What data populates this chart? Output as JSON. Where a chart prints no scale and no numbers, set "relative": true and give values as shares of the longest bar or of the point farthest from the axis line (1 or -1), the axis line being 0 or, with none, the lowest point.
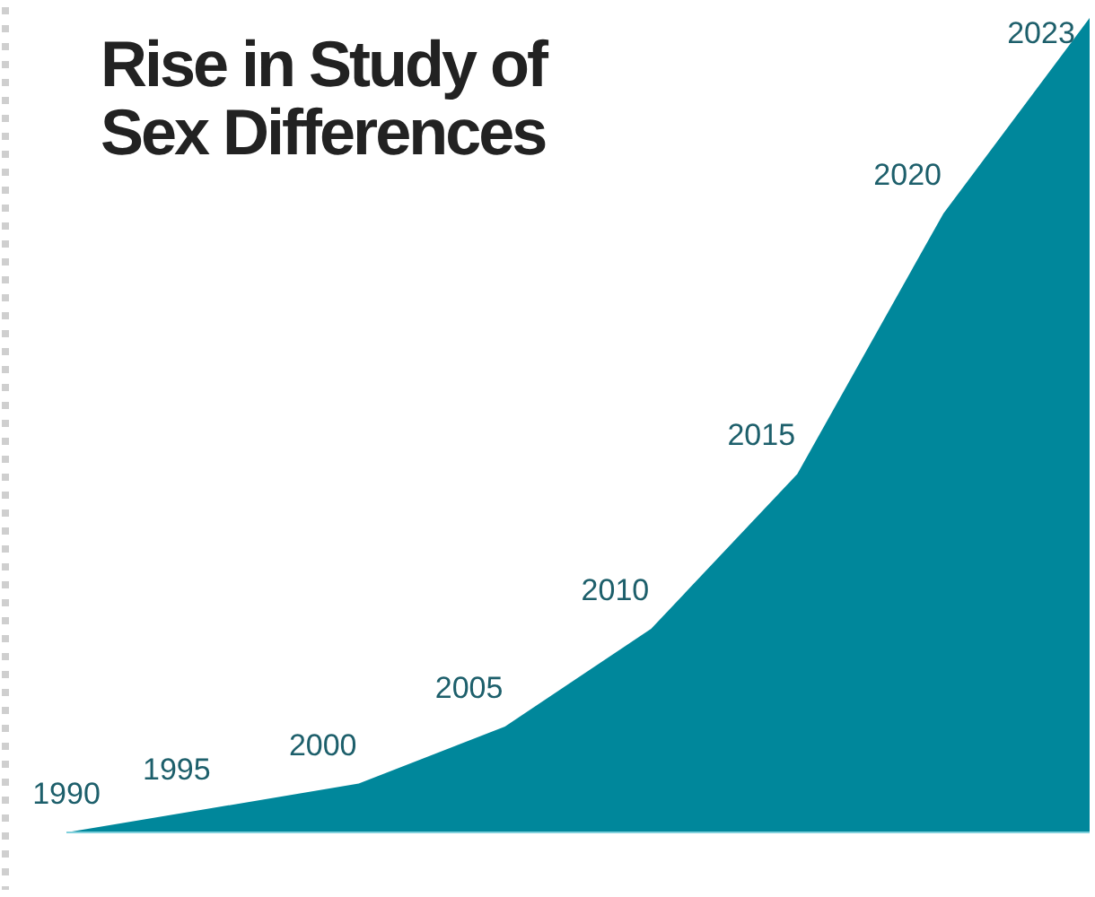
{
  "chart_data": {
    "type": "area",
    "title": "Rise in Study of\nSex Differences",
    "relative": true,
    "categories": [
      "1990",
      "1995",
      "2000",
      "2005",
      "2010",
      "2015",
      "2020",
      "2023"
    ],
    "values": [
      0,
      0.03,
      0.06,
      0.13,
      0.25,
      0.44,
      0.76,
      1
    ],
    "color": "#00879b"
  }
}
